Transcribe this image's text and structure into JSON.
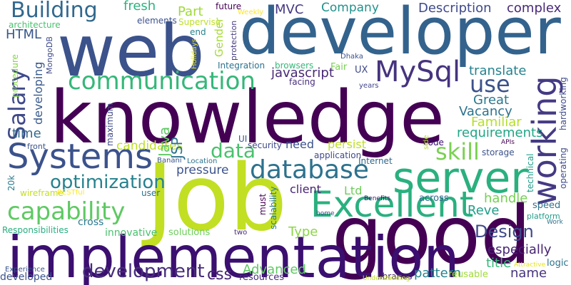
{
  "words": [
    {
      "key": "knowledge",
      "text": "knowledge",
      "color": "#440154",
      "vertical": false
    },
    {
      "key": "web",
      "text": "web",
      "color": "#3b528b",
      "vertical": false
    },
    {
      "key": "developer",
      "text": "developer",
      "color": "#33638d",
      "vertical": false
    },
    {
      "key": "job",
      "text": "Job",
      "color": "#c2df23",
      "vertical": false
    },
    {
      "key": "good",
      "text": "good",
      "color": "#440154",
      "vertical": false
    },
    {
      "key": "implementation",
      "text": "implementation",
      "color": "#3b0f70",
      "vertical": false
    },
    {
      "key": "server",
      "text": "server",
      "color": "#2ab07f",
      "vertical": false
    },
    {
      "key": "excellent",
      "text": "Excellent",
      "color": "#2ab07f",
      "vertical": false
    },
    {
      "key": "systems",
      "text": "Systems",
      "color": "#3b528b",
      "vertical": false
    },
    {
      "key": "database",
      "text": "database",
      "color": "#2c728e",
      "vertical": false
    },
    {
      "key": "communication",
      "text": "communication",
      "color": "#35b779",
      "vertical": false
    },
    {
      "key": "mysql",
      "text": "MySql",
      "color": "#46337e",
      "vertical": false
    },
    {
      "key": "working",
      "text": "working",
      "color": "#443a83",
      "vertical": true
    },
    {
      "key": "capability",
      "text": "capability",
      "color": "#5ec962",
      "vertical": false
    },
    {
      "key": "building",
      "text": "Building",
      "color": "#31688e",
      "vertical": false
    },
    {
      "key": "salary",
      "text": "Salary",
      "color": "#3e4989",
      "vertical": true
    },
    {
      "key": "optimization",
      "text": "optimization",
      "color": "#26828e",
      "vertical": false
    },
    {
      "key": "skill",
      "text": "skill",
      "color": "#7ad151",
      "vertical": false
    },
    {
      "key": "development",
      "text": "development",
      "color": "#472d7b",
      "vertical": false
    },
    {
      "key": "design",
      "text": "Design",
      "color": "#3e4989",
      "vertical": false
    },
    {
      "key": "use",
      "text": "use",
      "color": "#3b528b",
      "vertical": false
    },
    {
      "key": "data",
      "text": "data",
      "color": "#4ac16d",
      "vertical": false
    },
    {
      "key": "company",
      "text": "Company",
      "color": "#21918c",
      "vertical": false
    },
    {
      "key": "description",
      "text": "Description",
      "color": "#3e4989",
      "vertical": false
    },
    {
      "key": "complex",
      "text": "complex",
      "color": "#482878",
      "vertical": false
    },
    {
      "key": "javascript",
      "text": "javascript",
      "color": "#482878",
      "vertical": false
    },
    {
      "key": "mvc",
      "text": "MVC",
      "color": "#443983",
      "vertical": false
    },
    {
      "key": "fresh",
      "text": "fresh",
      "color": "#2db27d",
      "vertical": false
    },
    {
      "key": "part",
      "text": "Part",
      "color": "#a0da39",
      "vertical": false
    },
    {
      "key": "translate",
      "text": "translate",
      "color": "#26828e",
      "vertical": false
    },
    {
      "key": "great",
      "text": "Great",
      "color": "#2a788e",
      "vertical": false
    },
    {
      "key": "vacancy",
      "text": "Vacancy",
      "color": "#2c728e",
      "vertical": false
    },
    {
      "key": "familiar",
      "text": "Familiar",
      "color": "#b5de2b",
      "vertical": false
    },
    {
      "key": "requirements",
      "text": "requirements",
      "color": "#21a685",
      "vertical": false
    },
    {
      "key": "handle",
      "text": "handle",
      "color": "#75d054",
      "vertical": false
    },
    {
      "key": "especially",
      "text": "especially",
      "color": "#482475",
      "vertical": false
    },
    {
      "key": "name",
      "text": "name",
      "color": "#46337e",
      "vertical": false
    },
    {
      "key": "pattern",
      "text": "pattern",
      "color": "#25838e",
      "vertical": false
    },
    {
      "key": "css",
      "text": "css",
      "color": "#482475",
      "vertical": false
    },
    {
      "key": "advanced",
      "text": "Advanced",
      "color": "#5ec962",
      "vertical": false
    },
    {
      "key": "type",
      "text": "Type",
      "color": "#8bd646",
      "vertical": false
    },
    {
      "key": "reve",
      "text": "Reve",
      "color": "#1f9e89",
      "vertical": false
    },
    {
      "key": "title",
      "text": "title",
      "color": "#35b779",
      "vertical": false
    },
    {
      "key": "pressure",
      "text": "pressure",
      "color": "#3b528b",
      "vertical": false
    },
    {
      "key": "candidates",
      "text": "candidates",
      "color": "#bddf26",
      "vertical": false
    },
    {
      "key": "html",
      "text": "HTML",
      "color": "#39568c",
      "vertical": false
    },
    {
      "key": "time",
      "text": "time",
      "color": "#31688e",
      "vertical": false
    },
    {
      "key": "developing",
      "text": "developing",
      "color": "#38598c",
      "vertical": true
    },
    {
      "key": "innovative",
      "text": "innovative",
      "color": "#4ac16d",
      "vertical": false
    },
    {
      "key": "solutions",
      "text": "solutions",
      "color": "#6ccd5a",
      "vertical": false
    },
    {
      "key": "cross",
      "text": "cross",
      "color": "#2a788e",
      "vertical": false
    },
    {
      "key": "responsibilities",
      "text": "Responsibilities",
      "color": "#29af7f",
      "vertical": false
    },
    {
      "key": "developed",
      "text": "developed",
      "color": "#3b528b",
      "vertical": false
    },
    {
      "key": "resources",
      "text": "resources",
      "color": "#472d7b",
      "vertical": false
    },
    {
      "key": "java",
      "text": "Java",
      "color": "#5ec962",
      "vertical": true
    },
    {
      "key": "jsp",
      "text": "JSP",
      "color": "#2c728e",
      "vertical": true
    },
    {
      "key": "maximum",
      "text": "maximum",
      "color": "#3e4989",
      "vertical": true
    },
    {
      "key": "gender",
      "text": "Gender",
      "color": "#a5db36",
      "vertical": true
    },
    {
      "key": "future",
      "text": "future",
      "color": "#440154",
      "vertical": false
    },
    {
      "key": "weekly",
      "text": "Weekly",
      "color": "#fde725",
      "vertical": false
    },
    {
      "key": "supervise",
      "text": "Supervise",
      "color": "#bddf26",
      "vertical": false
    },
    {
      "key": "elements",
      "text": "elements",
      "color": "#3b528b",
      "vertical": false
    },
    {
      "key": "architecture",
      "text": "architecture",
      "color": "#4ac16d",
      "vertical": false
    },
    {
      "key": "mongodb",
      "text": "MongoDB",
      "color": "#3e4989",
      "vertical": true
    },
    {
      "key": "procedure",
      "text": "procedure",
      "color": "#86d549",
      "vertical": true
    },
    {
      "key": "end",
      "text": "end",
      "color": "#26828e",
      "vertical": false
    },
    {
      "key": "holidays",
      "text": "Holidays",
      "color": "#e5e419",
      "vertical": true
    },
    {
      "key": "integration",
      "text": "Integration",
      "color": "#2c728e",
      "vertical": false
    },
    {
      "key": "browsers",
      "text": "browsers",
      "color": "#35b779",
      "vertical": false
    },
    {
      "key": "fair",
      "text": "Fair",
      "color": "#7ad151",
      "vertical": false
    },
    {
      "key": "ux",
      "text": "UX",
      "color": "#3e4989",
      "vertical": false
    },
    {
      "key": "dhaka",
      "text": "Dhaka",
      "color": "#3b528b",
      "vertical": false
    },
    {
      "key": "facing",
      "text": "facing",
      "color": "#472d7b",
      "vertical": false
    },
    {
      "key": "years",
      "text": "years",
      "color": "#404688",
      "vertical": false
    },
    {
      "key": "protection",
      "text": "protection",
      "color": "#443983",
      "vertical": true
    },
    {
      "key": "front",
      "text": "front",
      "color": "#3b528b",
      "vertical": false
    },
    {
      "key": "k20",
      "text": "20k",
      "color": "#2a788e",
      "vertical": true
    },
    {
      "key": "wireframe",
      "text": "wireframe",
      "color": "#c2df23",
      "vertical": false
    },
    {
      "key": "restful",
      "text": "RESTful",
      "color": "#fde725",
      "vertical": false
    },
    {
      "key": "user",
      "text": "user",
      "color": "#2c728e",
      "vertical": false
    },
    {
      "key": "banani",
      "text": "Banani",
      "color": "#39568c",
      "vertical": false
    },
    {
      "key": "location",
      "text": "Location",
      "color": "#2c728e",
      "vertical": false
    },
    {
      "key": "ui",
      "text": "UI",
      "color": "#39568c",
      "vertical": false
    },
    {
      "key": "security",
      "text": "security",
      "color": "#3e4989",
      "vertical": false
    },
    {
      "key": "need",
      "text": "need",
      "color": "#3b528b",
      "vertical": false
    },
    {
      "key": "persist",
      "text": "persist",
      "color": "#bddf26",
      "vertical": false
    },
    {
      "key": "application",
      "text": "application",
      "color": "#3e4989",
      "vertical": false
    },
    {
      "key": "internet",
      "text": "Internet",
      "color": "#31688e",
      "vertical": false
    },
    {
      "key": "ltd",
      "text": "Ltd",
      "color": "#6ccd5a",
      "vertical": false
    },
    {
      "key": "client",
      "text": "client",
      "color": "#482475",
      "vertical": false
    },
    {
      "key": "must",
      "text": "must",
      "color": "#440154",
      "vertical": true
    },
    {
      "key": "scalability",
      "text": "scalability",
      "color": "#2a788e",
      "vertical": true
    },
    {
      "key": "two",
      "text": "two",
      "color": "#482878",
      "vertical": false
    },
    {
      "key": "home",
      "text": "home",
      "color": "#3e4989",
      "vertical": false
    },
    {
      "key": "benefits",
      "text": "Benefits",
      "color": "#3b0f70",
      "vertical": false
    },
    {
      "key": "across",
      "text": "across",
      "color": "#31688e",
      "vertical": false
    },
    {
      "key": "libraries",
      "text": "libraries",
      "color": "#482475",
      "vertical": false
    },
    {
      "key": "understanding",
      "text": "Understanding",
      "color": "#c2df23",
      "vertical": false
    },
    {
      "key": "reusable",
      "text": "reusable",
      "color": "#a0da39",
      "vertical": false
    },
    {
      "key": "attractive",
      "text": "Attractive",
      "color": "#e5e419",
      "vertical": false
    },
    {
      "key": "logic",
      "text": "logic",
      "color": "#2c728e",
      "vertical": false
    },
    {
      "key": "work",
      "text": "Work",
      "color": "#2c728e",
      "vertical": false
    },
    {
      "key": "speed",
      "text": "speed",
      "color": "#2c728e",
      "vertical": false
    },
    {
      "key": "platform",
      "text": "platform",
      "color": "#1f9e89",
      "vertical": false
    },
    {
      "key": "technical",
      "text": "technical",
      "color": "#1f9e89",
      "vertical": true
    },
    {
      "key": "hardworking",
      "text": "hardworking",
      "color": "#3e4989",
      "vertical": true
    },
    {
      "key": "operating",
      "text": "operating",
      "color": "#3e4989",
      "vertical": true
    },
    {
      "key": "apis",
      "text": "APIs",
      "color": "#440154",
      "vertical": false
    },
    {
      "key": "storage",
      "text": "storage",
      "color": "#3b528b",
      "vertical": false
    },
    {
      "key": "code",
      "text": "code",
      "color": "#3b0f70",
      "vertical": false
    },
    {
      "key": "side",
      "text": "side",
      "color": "#b5de2b",
      "vertical": true
    },
    {
      "key": "experience",
      "text": "Experience",
      "color": "#3b528b",
      "vertical": false
    }
  ]
}
